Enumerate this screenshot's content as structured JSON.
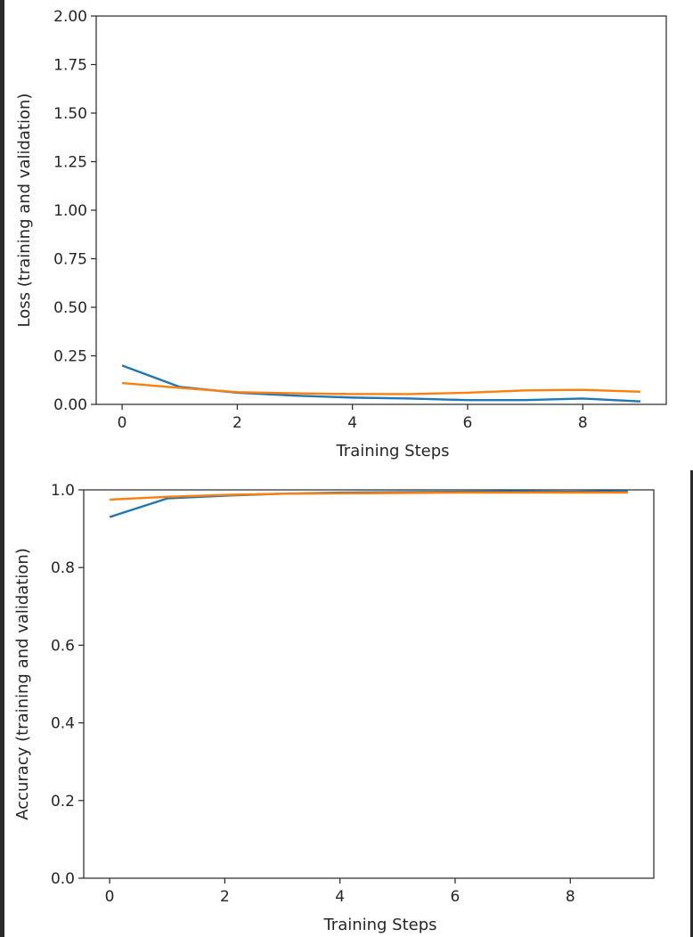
{
  "chart_data": [
    {
      "type": "line",
      "xlabel": "Training Steps",
      "ylabel": "Loss (training and validation)",
      "xlim": [
        -0.45,
        9.45
      ],
      "ylim": [
        0,
        2.0
      ],
      "xticks": [
        0,
        2,
        4,
        6,
        8
      ],
      "yticks": [
        0,
        0.25,
        0.5,
        0.75,
        1.0,
        1.25,
        1.5,
        1.75,
        2.0
      ],
      "ytick_labels": [
        "0.00",
        "0.25",
        "0.50",
        "0.75",
        "1.00",
        "1.25",
        "1.50",
        "1.75",
        "2.00"
      ],
      "grid": false,
      "x": [
        0,
        1,
        2,
        3,
        4,
        5,
        6,
        7,
        8,
        9
      ],
      "series": [
        {
          "color": "#1f77b4",
          "values": [
            0.2,
            0.09,
            0.06,
            0.045,
            0.035,
            0.03,
            0.022,
            0.022,
            0.03,
            0.015
          ]
        },
        {
          "color": "#ff7f0e",
          "values": [
            0.11,
            0.085,
            0.063,
            0.057,
            0.053,
            0.053,
            0.06,
            0.072,
            0.075,
            0.065
          ]
        }
      ]
    },
    {
      "type": "line",
      "xlabel": "Training Steps",
      "ylabel": "Accuracy (training and validation)",
      "xlim": [
        -0.45,
        9.45
      ],
      "ylim": [
        0,
        1.0
      ],
      "xticks": [
        0,
        2,
        4,
        6,
        8
      ],
      "yticks": [
        0,
        0.2,
        0.4,
        0.6,
        0.8,
        1.0
      ],
      "ytick_labels": [
        "0.0",
        "0.2",
        "0.4",
        "0.6",
        "0.8",
        "1.0"
      ],
      "grid": false,
      "x": [
        0,
        1,
        2,
        3,
        4,
        5,
        6,
        7,
        8,
        9
      ],
      "series": [
        {
          "color": "#1f77b4",
          "values": [
            0.93,
            0.978,
            0.985,
            0.99,
            0.993,
            0.994,
            0.995,
            0.996,
            0.995,
            0.997
          ]
        },
        {
          "color": "#ff7f0e",
          "values": [
            0.975,
            0.982,
            0.987,
            0.99,
            0.991,
            0.992,
            0.993,
            0.993,
            0.993,
            0.993
          ]
        }
      ]
    }
  ]
}
